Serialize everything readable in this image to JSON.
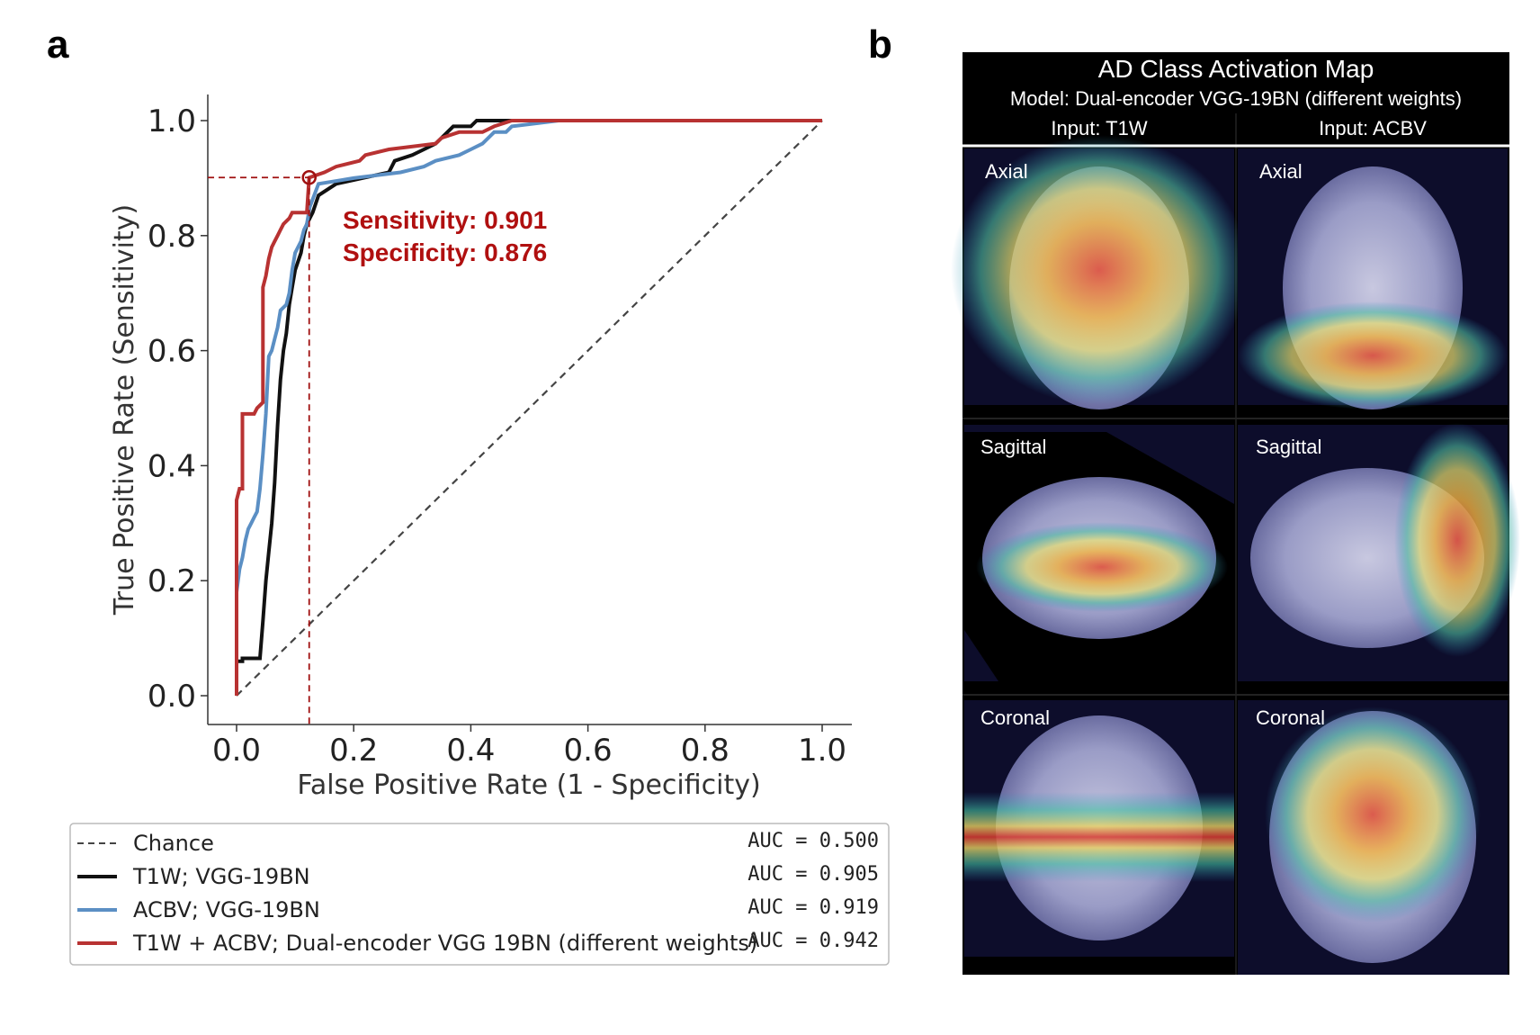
{
  "panels": {
    "a": "a",
    "b": "b"
  },
  "chart_data": {
    "type": "line",
    "title": "",
    "xlabel": "False Positive Rate (1 - Specificity)",
    "ylabel": "True Positive Rate (Sensitivity)",
    "xlim": [
      -0.05,
      1.05
    ],
    "ylim": [
      -0.05,
      1.05
    ],
    "xticks": [
      0.0,
      0.2,
      0.4,
      0.6,
      0.8,
      1.0
    ],
    "yticks": [
      0.0,
      0.2,
      0.4,
      0.6,
      0.8,
      1.0
    ],
    "xtick_labels": [
      "0.0",
      "0.2",
      "0.4",
      "0.6",
      "0.8",
      "1.0"
    ],
    "ytick_labels": [
      "0.0",
      "0.2",
      "0.4",
      "0.6",
      "0.8",
      "1.0"
    ],
    "operating_point": {
      "fpr": 0.124,
      "tpr": 0.901,
      "sensitivity_label": "Sensitivity: 0.901",
      "specificity_label": "Specificity: 0.876"
    },
    "legend_placement": "below",
    "series": [
      {
        "name": "Chance",
        "auc": "AUC = 0.500",
        "color": "#444444",
        "dash": true,
        "points": [
          [
            0,
            0
          ],
          [
            1,
            1
          ]
        ]
      },
      {
        "name": "T1W; VGG-19BN",
        "auc": "AUC = 0.905",
        "color": "#111111",
        "dash": false,
        "points": [
          [
            0,
            0
          ],
          [
            0,
            0.06
          ],
          [
            0.01,
            0.06
          ],
          [
            0.01,
            0.065
          ],
          [
            0.04,
            0.065
          ],
          [
            0.045,
            0.13
          ],
          [
            0.05,
            0.2
          ],
          [
            0.055,
            0.25
          ],
          [
            0.06,
            0.3
          ],
          [
            0.065,
            0.37
          ],
          [
            0.07,
            0.47
          ],
          [
            0.075,
            0.55
          ],
          [
            0.08,
            0.6
          ],
          [
            0.085,
            0.63
          ],
          [
            0.09,
            0.68
          ],
          [
            0.095,
            0.71
          ],
          [
            0.1,
            0.74
          ],
          [
            0.11,
            0.77
          ],
          [
            0.115,
            0.8
          ],
          [
            0.12,
            0.82
          ],
          [
            0.13,
            0.84
          ],
          [
            0.14,
            0.87
          ],
          [
            0.17,
            0.89
          ],
          [
            0.26,
            0.91
          ],
          [
            0.27,
            0.93
          ],
          [
            0.3,
            0.94
          ],
          [
            0.32,
            0.95
          ],
          [
            0.34,
            0.96
          ],
          [
            0.35,
            0.97
          ],
          [
            0.36,
            0.98
          ],
          [
            0.37,
            0.99
          ],
          [
            0.4,
            0.99
          ],
          [
            0.41,
            1.0
          ],
          [
            0.53,
            1.0
          ],
          [
            1,
            1
          ]
        ]
      },
      {
        "name": "ACBV; VGG-19BN",
        "auc": "AUC = 0.919",
        "color": "#5b8fc4",
        "dash": false,
        "points": [
          [
            0,
            0
          ],
          [
            0,
            0.18
          ],
          [
            0.005,
            0.22
          ],
          [
            0.01,
            0.24
          ],
          [
            0.015,
            0.27
          ],
          [
            0.02,
            0.29
          ],
          [
            0.025,
            0.3
          ],
          [
            0.03,
            0.31
          ],
          [
            0.035,
            0.32
          ],
          [
            0.04,
            0.36
          ],
          [
            0.045,
            0.42
          ],
          [
            0.05,
            0.49
          ],
          [
            0.055,
            0.59
          ],
          [
            0.06,
            0.6
          ],
          [
            0.065,
            0.62
          ],
          [
            0.07,
            0.64
          ],
          [
            0.075,
            0.67
          ],
          [
            0.085,
            0.68
          ],
          [
            0.09,
            0.7
          ],
          [
            0.095,
            0.74
          ],
          [
            0.1,
            0.77
          ],
          [
            0.11,
            0.79
          ],
          [
            0.115,
            0.81
          ],
          [
            0.12,
            0.82
          ],
          [
            0.125,
            0.85
          ],
          [
            0.14,
            0.89
          ],
          [
            0.2,
            0.9
          ],
          [
            0.28,
            0.91
          ],
          [
            0.32,
            0.92
          ],
          [
            0.34,
            0.93
          ],
          [
            0.38,
            0.94
          ],
          [
            0.4,
            0.95
          ],
          [
            0.42,
            0.96
          ],
          [
            0.43,
            0.97
          ],
          [
            0.44,
            0.98
          ],
          [
            0.46,
            0.98
          ],
          [
            0.47,
            0.99
          ],
          [
            0.55,
            1.0
          ],
          [
            1,
            1
          ]
        ]
      },
      {
        "name": "T1W + ACBV; Dual-encoder VGG 19BN (different weights)",
        "auc": "AUC = 0.942",
        "color": "#b83232",
        "dash": false,
        "points": [
          [
            0,
            0
          ],
          [
            0,
            0.34
          ],
          [
            0.005,
            0.36
          ],
          [
            0.01,
            0.36
          ],
          [
            0.01,
            0.49
          ],
          [
            0.03,
            0.49
          ],
          [
            0.035,
            0.5
          ],
          [
            0.045,
            0.51
          ],
          [
            0.045,
            0.71
          ],
          [
            0.05,
            0.73
          ],
          [
            0.055,
            0.76
          ],
          [
            0.06,
            0.78
          ],
          [
            0.065,
            0.79
          ],
          [
            0.07,
            0.8
          ],
          [
            0.075,
            0.81
          ],
          [
            0.08,
            0.82
          ],
          [
            0.09,
            0.83
          ],
          [
            0.095,
            0.84
          ],
          [
            0.12,
            0.84
          ],
          [
            0.124,
            0.901
          ],
          [
            0.15,
            0.91
          ],
          [
            0.17,
            0.92
          ],
          [
            0.21,
            0.93
          ],
          [
            0.22,
            0.94
          ],
          [
            0.26,
            0.95
          ],
          [
            0.34,
            0.96
          ],
          [
            0.35,
            0.97
          ],
          [
            0.38,
            0.98
          ],
          [
            0.42,
            0.98
          ],
          [
            0.44,
            0.99
          ],
          [
            0.47,
            1.0
          ],
          [
            1,
            1
          ]
        ]
      }
    ]
  },
  "cam": {
    "title": "AD Class Activation Map",
    "subtitle": "Model: Dual-encoder VGG-19BN (different weights)",
    "columns": [
      "Input: T1W",
      "Input: ACBV"
    ],
    "rows": [
      "Axial",
      "Sagittal",
      "Coronal"
    ],
    "colors": {
      "background": "#0d0d2b",
      "brain": "#9fa0c8",
      "hot": "#d83a30",
      "warm": "#f0d050",
      "cool": "#3fb0c0"
    }
  }
}
